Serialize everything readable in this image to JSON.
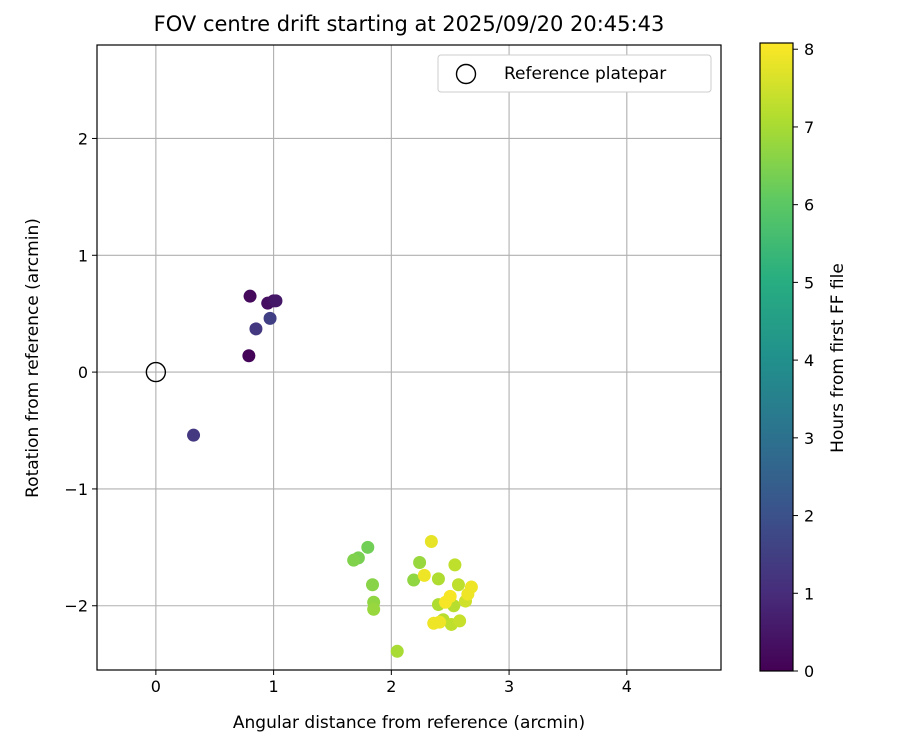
{
  "chart_data": {
    "type": "scatter",
    "title": "FOV centre drift starting at 2025/09/20 20:45:43",
    "xlabel": "Angular distance from reference (arcmin)",
    "ylabel": "Rotation from reference (arcmin)",
    "xlim": [
      -0.5,
      4.8
    ],
    "ylim": [
      -2.55,
      2.8
    ],
    "xticks": [
      0,
      1,
      2,
      3,
      4
    ],
    "yticks": [
      -2,
      -1,
      0,
      1,
      2
    ],
    "xtick_labels": [
      "0",
      "1",
      "2",
      "3",
      "4"
    ],
    "ytick_labels": [
      "−2",
      "−1",
      "0",
      "1",
      "2"
    ],
    "grid": true,
    "legend": {
      "position": "top-right",
      "label": "Reference platepar"
    },
    "reference_point": {
      "x": 0,
      "y": 0
    },
    "colorbar": {
      "label": "Hours from first FF file",
      "min": 0,
      "max": 8.08,
      "ticks": [
        0,
        1,
        2,
        3,
        4,
        5,
        6,
        7,
        8
      ],
      "tick_labels": [
        "0",
        "1",
        "2",
        "3",
        "4",
        "5",
        "6",
        "7",
        "8"
      ],
      "colormap": "viridis"
    },
    "points": [
      {
        "x": 0.79,
        "y": 0.14,
        "hours": 0.1
      },
      {
        "x": 0.8,
        "y": 0.65,
        "hours": 0.2
      },
      {
        "x": 0.95,
        "y": 0.59,
        "hours": 0.3
      },
      {
        "x": 1.0,
        "y": 0.61,
        "hours": 0.4
      },
      {
        "x": 1.02,
        "y": 0.61,
        "hours": 0.5
      },
      {
        "x": 0.85,
        "y": 0.37,
        "hours": 1.3
      },
      {
        "x": 0.97,
        "y": 0.46,
        "hours": 1.5
      },
      {
        "x": 0.32,
        "y": -0.54,
        "hours": 1.3
      },
      {
        "x": 1.8,
        "y": -1.5,
        "hours": 6.3
      },
      {
        "x": 1.72,
        "y": -1.59,
        "hours": 6.4
      },
      {
        "x": 1.68,
        "y": -1.61,
        "hours": 6.5
      },
      {
        "x": 1.84,
        "y": -1.82,
        "hours": 6.6
      },
      {
        "x": 1.85,
        "y": -1.97,
        "hours": 6.7
      },
      {
        "x": 1.85,
        "y": -2.03,
        "hours": 6.8
      },
      {
        "x": 2.05,
        "y": -2.39,
        "hours": 7.0
      },
      {
        "x": 2.19,
        "y": -1.78,
        "hours": 6.7
      },
      {
        "x": 2.24,
        "y": -1.63,
        "hours": 6.8
      },
      {
        "x": 2.4,
        "y": -1.77,
        "hours": 7.1
      },
      {
        "x": 2.4,
        "y": -1.99,
        "hours": 7.1
      },
      {
        "x": 2.44,
        "y": -2.12,
        "hours": 7.2
      },
      {
        "x": 2.51,
        "y": -2.16,
        "hours": 7.3
      },
      {
        "x": 2.53,
        "y": -2.0,
        "hours": 7.2
      },
      {
        "x": 2.54,
        "y": -1.65,
        "hours": 7.3
      },
      {
        "x": 2.57,
        "y": -1.82,
        "hours": 7.3
      },
      {
        "x": 2.58,
        "y": -2.13,
        "hours": 7.4
      },
      {
        "x": 2.63,
        "y": -1.96,
        "hours": 7.5
      },
      {
        "x": 2.34,
        "y": -1.45,
        "hours": 7.8
      },
      {
        "x": 2.28,
        "y": -1.74,
        "hours": 7.9
      },
      {
        "x": 2.36,
        "y": -2.15,
        "hours": 7.9
      },
      {
        "x": 2.41,
        "y": -2.14,
        "hours": 7.9
      },
      {
        "x": 2.46,
        "y": -1.97,
        "hours": 8.0
      },
      {
        "x": 2.5,
        "y": -1.92,
        "hours": 8.0
      },
      {
        "x": 2.65,
        "y": -1.9,
        "hours": 7.9
      },
      {
        "x": 2.68,
        "y": -1.84,
        "hours": 7.9
      }
    ]
  }
}
